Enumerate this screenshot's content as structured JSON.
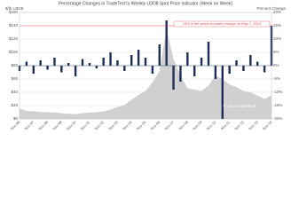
{
  "chart_data": {
    "type": "bar-area",
    "title": "Percentage Changes in TradeTech's Weekly U3O8 Spot Price Indicator (Week on Week)",
    "y_label": "$/lb U3O8",
    "y2_label": "Percent Change",
    "annotation": "15% is the week-on-week change on May 7, 2014",
    "credit": "© 2014 TradeTech",
    "reference_line": 15,
    "reference_color": "#e05050",
    "categories": [
      "Nov-96",
      null,
      "Nov-97",
      null,
      "Nov-98",
      null,
      "Nov-99",
      null,
      "Nov-00",
      null,
      "Nov-01",
      null,
      "Nov-02",
      null,
      "Nov-03",
      null,
      "Nov-04",
      null,
      "Nov-05",
      null,
      "Nov-06",
      null,
      "Nov-07",
      null,
      "Nov-08",
      null,
      "Nov-09",
      null,
      "Nov-10",
      null,
      "Nov-11",
      null,
      "Nov-12",
      null,
      "Nov-13",
      null,
      "Nov-14"
    ],
    "series": [
      {
        "name": "Spot Price",
        "color": "#d0d0d0",
        "axis": "y",
        "values": [
          15.7,
          12,
          11.5,
          10.5,
          10,
          9.6,
          8.5,
          7.9,
          7.2,
          8.6,
          9.7,
          10.2,
          11.4,
          14,
          18,
          21,
          29,
          36,
          42,
          55,
          72,
          135,
          90,
          65,
          46,
          44,
          42,
          50,
          65,
          60,
          52,
          48,
          42,
          40,
          35,
          30,
          36
        ]
      },
      {
        "name": "Percent Change",
        "color": "#1f2d5a",
        "axis": "y2",
        "values": [
          -2,
          1.5,
          -3,
          2,
          -1.5,
          3,
          -2.5,
          1,
          -4,
          2.5,
          1,
          -1,
          3,
          5,
          2,
          -2,
          4,
          6,
          3,
          -3,
          8,
          17,
          -9,
          -6,
          5,
          -4,
          3,
          9,
          -5,
          -20,
          -3,
          2,
          -2,
          4,
          1.5,
          -2.5,
          15
        ]
      }
    ],
    "ylim": [
      0,
      160
    ],
    "yticks": [
      {
        "value": 0,
        "label": "$0"
      },
      {
        "value": 20,
        "label": "$20"
      },
      {
        "value": 40,
        "label": "$40"
      },
      {
        "value": 60,
        "label": "$60"
      },
      {
        "value": 80,
        "label": "$80"
      },
      {
        "value": 100,
        "label": "$100"
      },
      {
        "value": 120,
        "label": "$120"
      },
      {
        "value": 140,
        "label": "$140"
      },
      {
        "value": 160,
        "label": "$160"
      }
    ],
    "y2lim": [
      -20,
      20
    ],
    "y2ticks": [
      {
        "value": -20,
        "label": "-20%"
      },
      {
        "value": -15,
        "label": "-15%"
      },
      {
        "value": -10,
        "label": "-10%"
      },
      {
        "value": -5,
        "label": "-5%"
      },
      {
        "value": 0,
        "label": "0%"
      },
      {
        "value": 5,
        "label": "5%"
      },
      {
        "value": 10,
        "label": "10%"
      },
      {
        "value": 15,
        "label": "15%"
      },
      {
        "value": 20,
        "label": "20%"
      }
    ],
    "grid": true
  }
}
